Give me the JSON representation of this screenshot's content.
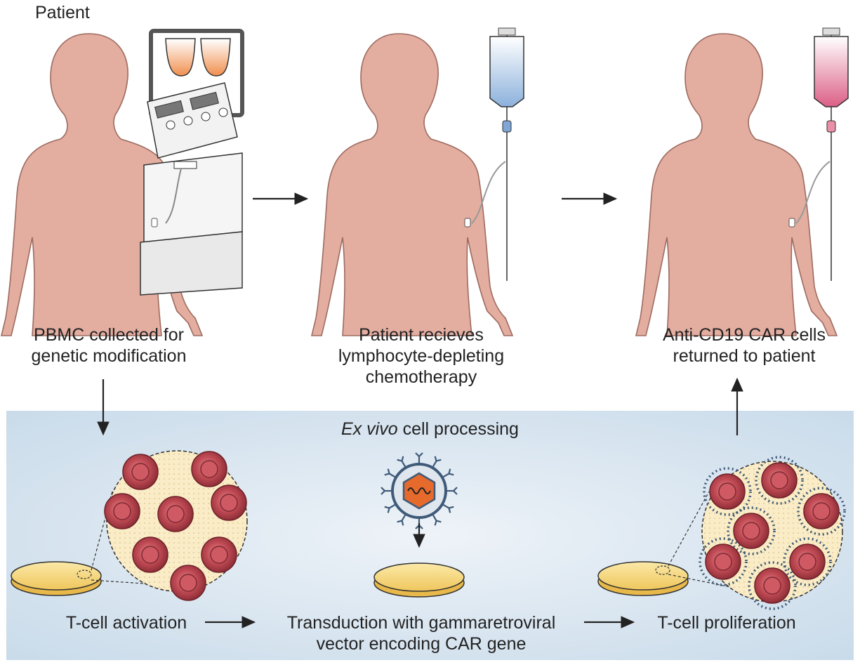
{
  "patient_tag": "Patient",
  "steps": {
    "collect": {
      "line1": "PBMC collected for",
      "line2": "genetic modification"
    },
    "chemo": {
      "line1": "Patient recieves",
      "line2": "lymphocyte-depleting",
      "line3": "chemotherapy"
    },
    "return": {
      "line1": "Anti-CD19 CAR cells",
      "line2": "returned to patient"
    }
  },
  "panel": {
    "title_italic": "Ex vivo",
    "title_rest": " cell processing"
  },
  "process": {
    "activation": "T-cell activation",
    "transduction_line1": "Transduction with gammaretroviral",
    "transduction_line2": "vector encoding CAR gene",
    "proliferation": "T-cell proliferation"
  },
  "colors": {
    "skin": "#e3ada0",
    "skin_stroke": "#9d6b60",
    "panel_bg": "#d3e2ee",
    "dish": "#f5d77a",
    "cell": "#b8434b",
    "blood_bag": "#f2a46a",
    "chemo_bag": "#8fb2d9",
    "car_bag": "#dd6d8c",
    "virus": "#e56a2c"
  }
}
